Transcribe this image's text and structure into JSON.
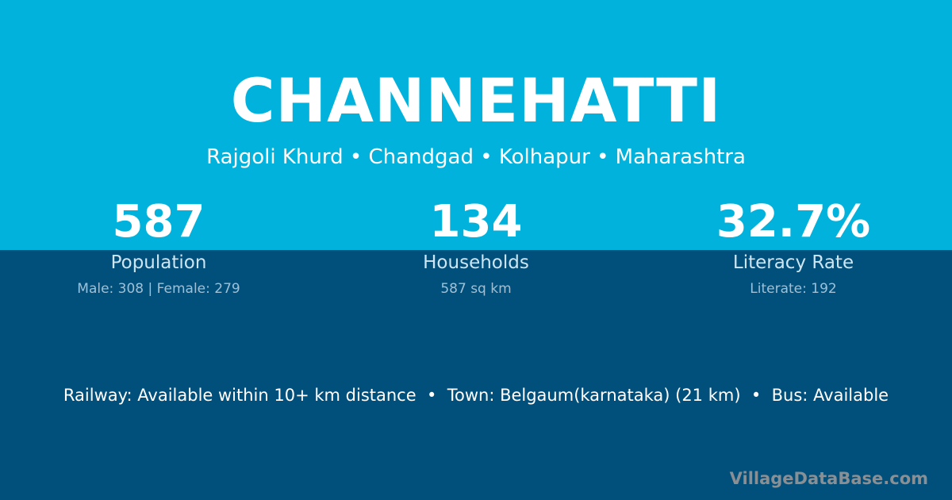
{
  "title": "CHANNEHATTI",
  "location": "Rajgoli Khurd • Chandgad • Kolhapur • Maharashtra",
  "stats": [
    {
      "value": "587",
      "label": "Population",
      "detail": "Male: 308 | Female: 279"
    },
    {
      "value": "134",
      "label": "Households",
      "detail": "587 sq km"
    },
    {
      "value": "32.7%",
      "label": "Literacy Rate",
      "detail": "Literate: 192"
    }
  ],
  "connectivity": "Railway: Available within 10+ km distance  •  Town: Belgaum(karnataka) (21 km)  •  Bus: Available",
  "brand": "VillageDataBase.com",
  "colors": {
    "top": "#00b2dc",
    "bottom": "#014f7b"
  }
}
